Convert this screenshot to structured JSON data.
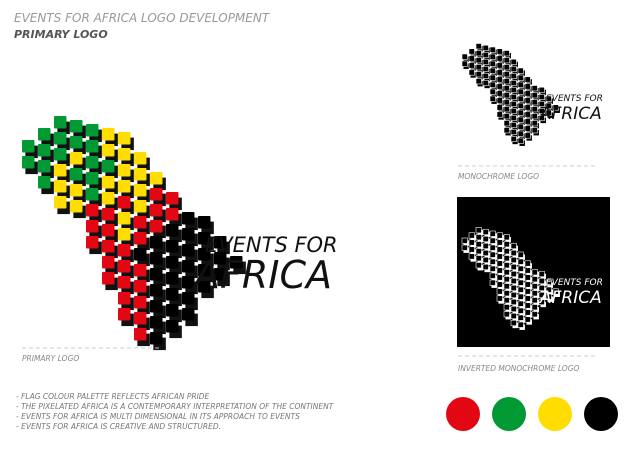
{
  "header": {
    "title": "EVENTS FOR AFRICA LOGO DEVELOPMENT",
    "subtitle": "PRIMARY LOGO"
  },
  "logo": {
    "line1": "EVENTS FOR",
    "line2": "AFRICA"
  },
  "captions": {
    "primary": "PRIMARY LOGO",
    "monochrome": "MONOCHROME LOGO",
    "inverted": "INVERTED MONOCHROME LOGO"
  },
  "notes": [
    "- FLAG COLOUR PALETTE REFLECTS AFRICAN PRIDE",
    "- THE PIXELATED AFRICA IS A CONTEMPORARY INTERPRETATION OF THE CONTINENT",
    "- EVENTS FOR AFRICA IS MULTI DIMENSIONAL IN ITS APPROACH TO EVENTS",
    "- EVENTS FOR AFRICA IS CREATIVE AND STRUCTURED."
  ],
  "palette": [
    "#e30613",
    "#009933",
    "#ffdd00",
    "#000000"
  ]
}
